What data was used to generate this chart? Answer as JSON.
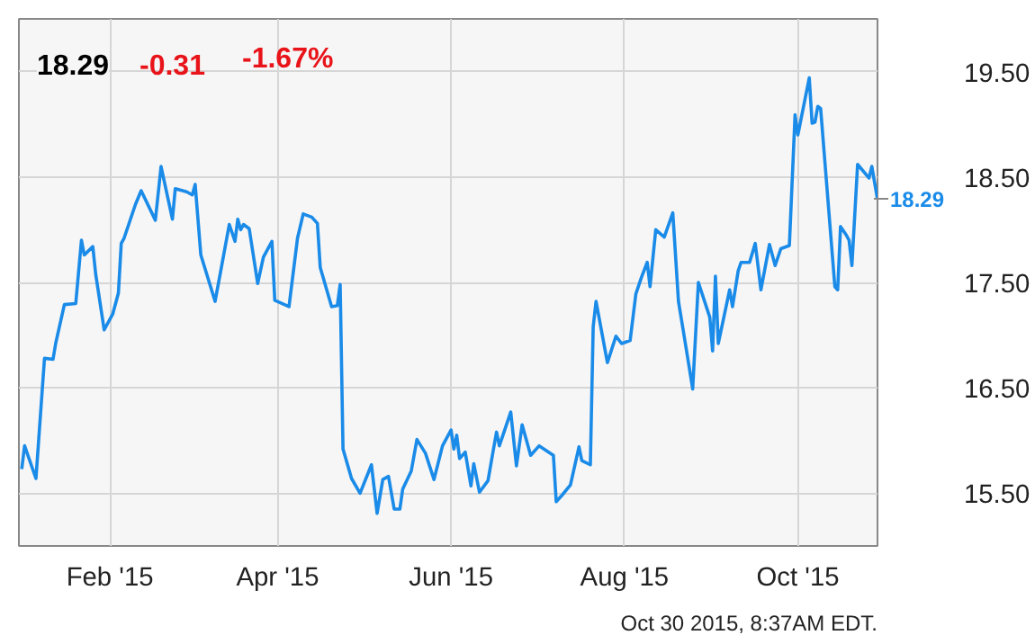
{
  "chart_data": {
    "type": "line",
    "x": [
      "2015-01-01",
      "2015-01-02",
      "2015-01-06",
      "2015-01-07",
      "2015-01-09",
      "2015-01-12",
      "2015-01-13",
      "2015-01-16",
      "2015-01-20",
      "2015-01-22",
      "2015-01-23",
      "2015-01-26",
      "2015-01-27",
      "2015-01-30",
      "2015-02-02",
      "2015-02-04",
      "2015-02-05",
      "2015-02-06",
      "2015-02-08",
      "2015-02-10",
      "2015-02-12",
      "2015-02-17",
      "2015-02-19",
      "2015-02-23",
      "2015-02-24",
      "2015-02-28",
      "2015-03-02",
      "2015-03-03",
      "2015-03-05",
      "2015-03-10",
      "2015-03-12",
      "2015-03-15",
      "2015-03-17",
      "2015-03-18",
      "2015-03-19",
      "2015-03-20",
      "2015-03-22",
      "2015-03-25",
      "2015-03-27",
      "2015-03-30",
      "2015-03-31",
      "2015-04-05",
      "2015-04-08",
      "2015-04-10",
      "2015-04-13",
      "2015-04-15",
      "2015-04-16",
      "2015-04-20",
      "2015-04-22",
      "2015-04-23",
      "2015-04-24",
      "2015-04-27",
      "2015-04-30",
      "2015-05-04",
      "2015-05-06",
      "2015-05-08",
      "2015-05-10",
      "2015-05-12",
      "2015-05-14",
      "2015-05-15",
      "2015-05-18",
      "2015-05-20",
      "2015-05-23",
      "2015-05-26",
      "2015-05-29",
      "2015-06-01",
      "2015-06-02",
      "2015-06-03",
      "2015-06-04",
      "2015-06-06",
      "2015-06-08",
      "2015-06-09",
      "2015-06-11",
      "2015-06-14",
      "2015-06-16",
      "2015-06-17",
      "2015-06-18",
      "2015-06-22",
      "2015-06-24",
      "2015-06-26",
      "2015-06-29",
      "2015-07-02",
      "2015-07-07",
      "2015-07-08",
      "2015-07-10",
      "2015-07-13",
      "2015-07-16",
      "2015-07-17",
      "2015-07-20",
      "2015-07-21",
      "2015-07-22",
      "2015-07-26",
      "2015-07-29",
      "2015-07-31",
      "2015-08-03",
      "2015-08-05",
      "2015-08-07",
      "2015-08-09",
      "2015-08-10",
      "2015-08-12",
      "2015-08-15",
      "2015-08-18",
      "2015-08-20",
      "2015-08-22",
      "2015-08-25",
      "2015-08-27",
      "2015-08-31",
      "2015-09-01",
      "2015-09-02",
      "2015-09-03",
      "2015-09-07",
      "2015-09-08",
      "2015-09-10",
      "2015-09-11",
      "2015-09-14",
      "2015-09-16",
      "2015-09-18",
      "2015-09-21",
      "2015-09-23",
      "2015-09-25",
      "2015-09-28",
      "2015-09-30",
      "2015-10-01",
      "2015-10-05",
      "2015-10-06",
      "2015-10-07",
      "2015-10-08",
      "2015-10-09",
      "2015-10-14",
      "2015-10-15",
      "2015-10-16",
      "2015-10-18",
      "2015-10-19",
      "2015-10-20",
      "2015-10-22",
      "2015-10-26",
      "2015-10-27",
      "2015-10-29"
    ],
    "series": [
      {
        "color": "#1a8be8",
        "values": [
          15.73,
          15.95,
          15.64,
          16.02,
          16.78,
          16.77,
          16.93,
          17.29,
          17.3,
          17.9,
          17.76,
          17.84,
          17.58,
          17.05,
          17.2,
          17.4,
          17.87,
          17.92,
          18.08,
          18.24,
          18.37,
          18.09,
          18.6,
          18.1,
          18.39,
          18.36,
          18.33,
          18.43,
          17.76,
          17.32,
          17.61,
          18.05,
          17.89,
          18.1,
          18.0,
          18.05,
          18.01,
          17.49,
          17.74,
          17.89,
          17.33,
          17.27,
          17.92,
          18.15,
          18.12,
          18.06,
          17.64,
          17.27,
          17.28,
          17.48,
          15.92,
          15.64,
          15.5,
          15.77,
          15.31,
          15.63,
          15.66,
          15.35,
          15.35,
          15.54,
          15.71,
          16.01,
          15.88,
          15.63,
          15.95,
          16.1,
          15.92,
          16.05,
          15.83,
          15.89,
          15.57,
          15.78,
          15.51,
          15.62,
          15.93,
          16.08,
          15.95,
          16.27,
          15.76,
          16.15,
          15.86,
          15.95,
          15.86,
          15.42,
          15.48,
          15.58,
          15.94,
          15.81,
          15.77,
          17.08,
          17.32,
          16.74,
          16.99,
          16.92,
          16.95,
          17.39,
          17.55,
          17.69,
          17.46,
          18.0,
          17.93,
          18.16,
          17.32,
          16.99,
          16.49,
          17.5,
          17.17,
          16.85,
          17.56,
          16.92,
          17.43,
          17.27,
          17.61,
          17.69,
          17.69,
          17.87,
          17.43,
          17.86,
          17.66,
          17.82,
          17.85,
          19.09,
          18.9,
          19.44,
          19.01,
          19.02,
          19.17,
          19.15,
          17.46,
          17.43,
          18.03,
          17.95,
          17.9,
          17.66,
          18.62,
          18.49,
          18.6,
          18.29
        ]
      }
    ],
    "xlim": [
      "2014-12-31",
      "2015-10-29"
    ],
    "ylim": [
      15.0,
      20.0
    ],
    "xticks": [
      {
        "value": "2015-02-01",
        "label": "Feb '15"
      },
      {
        "value": "2015-04-01",
        "label": "Apr '15"
      },
      {
        "value": "2015-06-01",
        "label": "Jun '15"
      },
      {
        "value": "2015-08-01",
        "label": "Aug '15"
      },
      {
        "value": "2015-10-01",
        "label": "Oct '15"
      }
    ],
    "yticks": [
      {
        "value": 15.5,
        "label": "15.50"
      },
      {
        "value": 16.5,
        "label": "16.50"
      },
      {
        "value": 17.5,
        "label": "17.50"
      },
      {
        "value": 18.5,
        "label": "18.50"
      },
      {
        "value": 19.5,
        "label": "19.50"
      }
    ],
    "grid": true,
    "annotations": [
      "18.29",
      "-0.31",
      "-1.67%",
      "18.29",
      "Oct 30 2015, 8:37AM EDT."
    ]
  }
}
